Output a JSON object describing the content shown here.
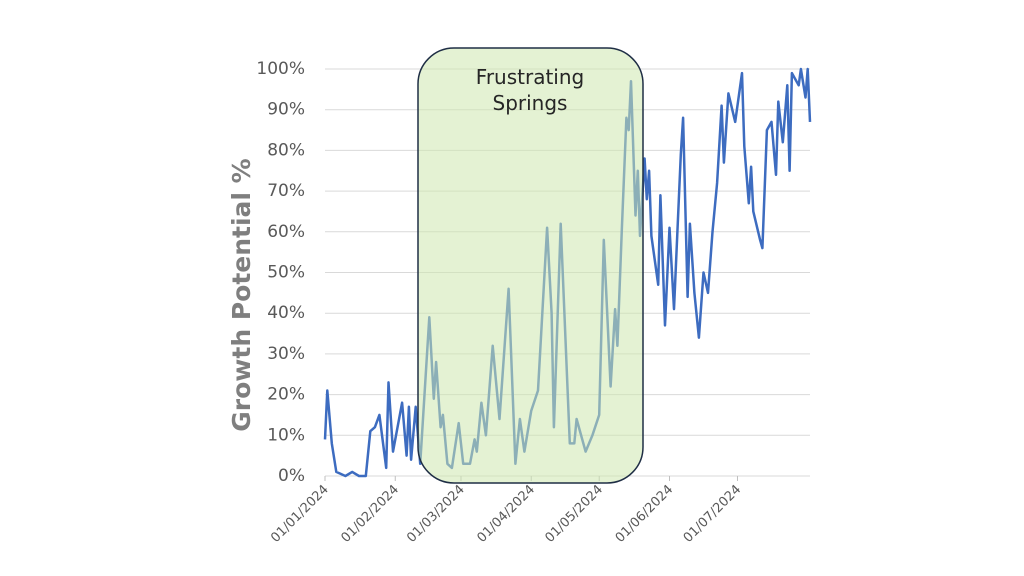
{
  "chart_data": {
    "type": "line",
    "y_label": "Growth Potential %",
    "annotation": "Frustrating Springs",
    "color": "#3d6cc0",
    "grid": true,
    "x": [
      "01/01/2024",
      "02/01/2024",
      "04/01/2024",
      "06/01/2024",
      "10/01/2024",
      "13/01/2024",
      "16/01/2024",
      "19/01/2024",
      "21/01/2024",
      "23/01/2024",
      "25/01/2024",
      "28/01/2024",
      "29/01/2024",
      "31/01/2024",
      "04/02/2024",
      "06/02/2024",
      "07/02/2024",
      "08/02/2024",
      "10/02/2024",
      "12/02/2024",
      "16/02/2024",
      "18/02/2024",
      "19/02/2024",
      "21/02/2024",
      "22/02/2024",
      "24/02/2024",
      "26/02/2024",
      "29/02/2024",
      "02/03/2024",
      "05/03/2024",
      "07/03/2024",
      "08/03/2024",
      "10/03/2024",
      "12/03/2024",
      "15/03/2024",
      "18/03/2024",
      "22/03/2024",
      "25/03/2024",
      "27/03/2024",
      "29/03/2024",
      "01/04/2024",
      "04/04/2024",
      "08/04/2024",
      "10/04/2024",
      "11/04/2024",
      "14/04/2024",
      "18/04/2024",
      "20/04/2024",
      "21/04/2024",
      "25/04/2024",
      "28/04/2024",
      "01/05/2024",
      "03/05/2024",
      "06/05/2024",
      "08/05/2024",
      "09/05/2024",
      "11/05/2024",
      "13/05/2024",
      "14/05/2024",
      "15/05/2024",
      "17/05/2024",
      "18/05/2024",
      "19/05/2024",
      "21/05/2024",
      "22/05/2024",
      "23/05/2024",
      "24/05/2024",
      "27/05/2024",
      "28/05/2024",
      "30/05/2024",
      "01/06/2024",
      "03/06/2024",
      "06/06/2024",
      "07/06/2024",
      "09/06/2024",
      "10/06/2024",
      "12/06/2024",
      "14/06/2024",
      "16/06/2024",
      "18/06/2024",
      "20/06/2024",
      "22/06/2024",
      "24/06/2024",
      "25/06/2024",
      "27/06/2024",
      "30/06/2024",
      "03/07/2024",
      "04/07/2024",
      "06/07/2024",
      "07/07/2024",
      "08/07/2024",
      "11/07/2024",
      "12/07/2024",
      "14/07/2024",
      "16/07/2024",
      "18/07/2024",
      "19/07/2024",
      "21/07/2024",
      "23/07/2024",
      "24/07/2024",
      "25/07/2024",
      "28/07/2024",
      "29/07/2024",
      "31/07/2024",
      "01/08/2024",
      "02/08/2024"
    ],
    "values": [
      9,
      21,
      8,
      1,
      0,
      1,
      0,
      0,
      11,
      12,
      15,
      2,
      23,
      6,
      18,
      5,
      17,
      4,
      17,
      3,
      39,
      19,
      28,
      12,
      15,
      3,
      2,
      13,
      3,
      3,
      9,
      6,
      18,
      10,
      32,
      14,
      46,
      3,
      14,
      6,
      16,
      21,
      61,
      40,
      12,
      62,
      8,
      8,
      14,
      6,
      10,
      15,
      58,
      22,
      41,
      32,
      61,
      88,
      85,
      97,
      64,
      75,
      59,
      78,
      68,
      75,
      59,
      47,
      69,
      37,
      61,
      41,
      79,
      88,
      44,
      62,
      45,
      34,
      50,
      45,
      60,
      72,
      91,
      77,
      94,
      87,
      99,
      81,
      67,
      76,
      65,
      58,
      56,
      85,
      87,
      74,
      92,
      82,
      96,
      75,
      99,
      96,
      100,
      93,
      100,
      87
    ],
    "xlim": [
      "01/01/2024",
      "02/08/2024"
    ],
    "xticks": [
      "01/01/2024",
      "01/02/2024",
      "01/03/2024",
      "01/04/2024",
      "01/05/2024",
      "01/06/2024",
      "01/07/2024"
    ],
    "ylim": [
      0,
      100
    ],
    "yticks": [
      {
        "value": 0,
        "label": "0%"
      },
      {
        "value": 10,
        "label": "10%"
      },
      {
        "value": 20,
        "label": "20%"
      },
      {
        "value": 30,
        "label": "30%"
      },
      {
        "value": 40,
        "label": "40%"
      },
      {
        "value": 50,
        "label": "50%"
      },
      {
        "value": 60,
        "label": "60%"
      },
      {
        "value": 70,
        "label": "70%"
      },
      {
        "value": 80,
        "label": "80%"
      },
      {
        "value": 90,
        "label": "90%"
      },
      {
        "value": 100,
        "label": "100%"
      }
    ]
  }
}
